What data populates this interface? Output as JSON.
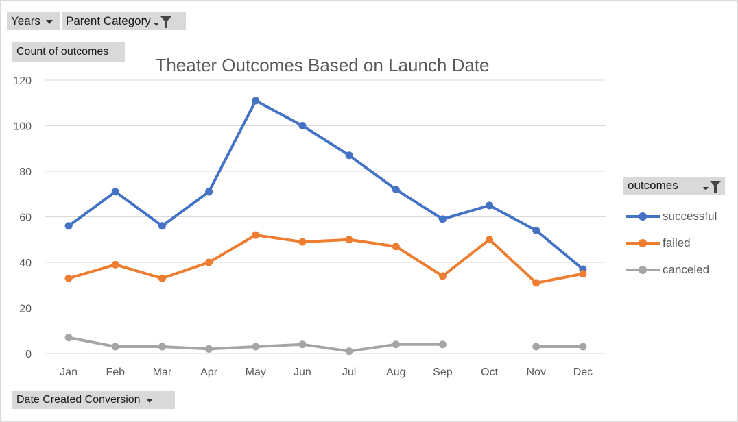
{
  "filters": {
    "years_label": "Years",
    "parent_label": "Parent Category",
    "values_label": "Count of outcomes",
    "axis_field_label": "Date Created Conversion",
    "legend_field_label": "outcomes"
  },
  "icons": {
    "dropdown": "chevron-down-icon",
    "filter": "filter-icon"
  },
  "colors": {
    "successful": "#4472c4",
    "failed": "#ed7d31",
    "canceled": "#a5a5a5",
    "gridline": "#d9d9d9",
    "axis_text": "#595959"
  },
  "chart_data": {
    "type": "line",
    "title": "Theater Outcomes Based on Launch Date",
    "xlabel": "",
    "ylabel": "",
    "categories": [
      "Jan",
      "Feb",
      "Mar",
      "Apr",
      "May",
      "Jun",
      "Jul",
      "Aug",
      "Sep",
      "Oct",
      "Nov",
      "Dec"
    ],
    "ylim": [
      0,
      120
    ],
    "yticks": [
      0,
      20,
      40,
      60,
      80,
      100,
      120
    ],
    "grid": true,
    "legend_position": "right",
    "series": [
      {
        "name": "successful",
        "values": [
          56,
          71,
          56,
          71,
          111,
          100,
          87,
          72,
          59,
          65,
          54,
          37
        ]
      },
      {
        "name": "failed",
        "values": [
          33,
          39,
          33,
          40,
          52,
          49,
          50,
          47,
          34,
          50,
          31,
          35
        ]
      },
      {
        "name": "canceled",
        "values": [
          7,
          3,
          3,
          2,
          3,
          4,
          1,
          4,
          4,
          null,
          3,
          3
        ]
      }
    ]
  }
}
